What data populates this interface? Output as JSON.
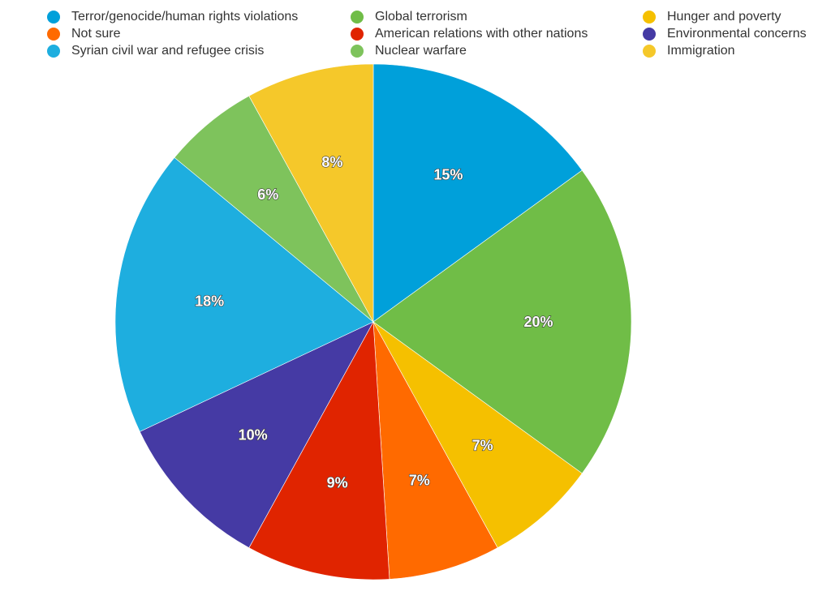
{
  "chart_data": {
    "type": "pie",
    "categories": [
      "Terror/genocide/human rights violations",
      "Global terrorism",
      "Hunger and poverty",
      "Not sure",
      "American relations with other nations",
      "Environmental concerns",
      "Syrian civil war and refugee crisis",
      "Nuclear warfare",
      "Immigration"
    ],
    "values": [
      15,
      20,
      7,
      7,
      9,
      10,
      18,
      6,
      8
    ],
    "labels": [
      "15%",
      "20%",
      "7%",
      "7%",
      "9%",
      "10%",
      "18%",
      "6%",
      "8%"
    ],
    "colors": [
      "#00a0da",
      "#70bd47",
      "#f5c000",
      "#ff6a00",
      "#e02400",
      "#453aa4",
      "#1eaedf",
      "#7ec35c",
      "#f5c82a"
    ],
    "legend": [
      {
        "label": "Terror/genocide/human rights violations",
        "color": "#00a0da"
      },
      {
        "label": "Global terrorism",
        "color": "#70bd47"
      },
      {
        "label": "Hunger and poverty",
        "color": "#f5c000"
      },
      {
        "label": "Not sure",
        "color": "#ff6a00"
      },
      {
        "label": "American relations with other nations",
        "color": "#e02400"
      },
      {
        "label": "Environmental concerns",
        "color": "#453aa4"
      },
      {
        "label": "Syrian civil war and refugee crisis",
        "color": "#1eaedf"
      },
      {
        "label": "Nuclear warfare",
        "color": "#7ec35c"
      },
      {
        "label": "Immigration",
        "color": "#f5c82a"
      }
    ],
    "legend_position": "top"
  }
}
